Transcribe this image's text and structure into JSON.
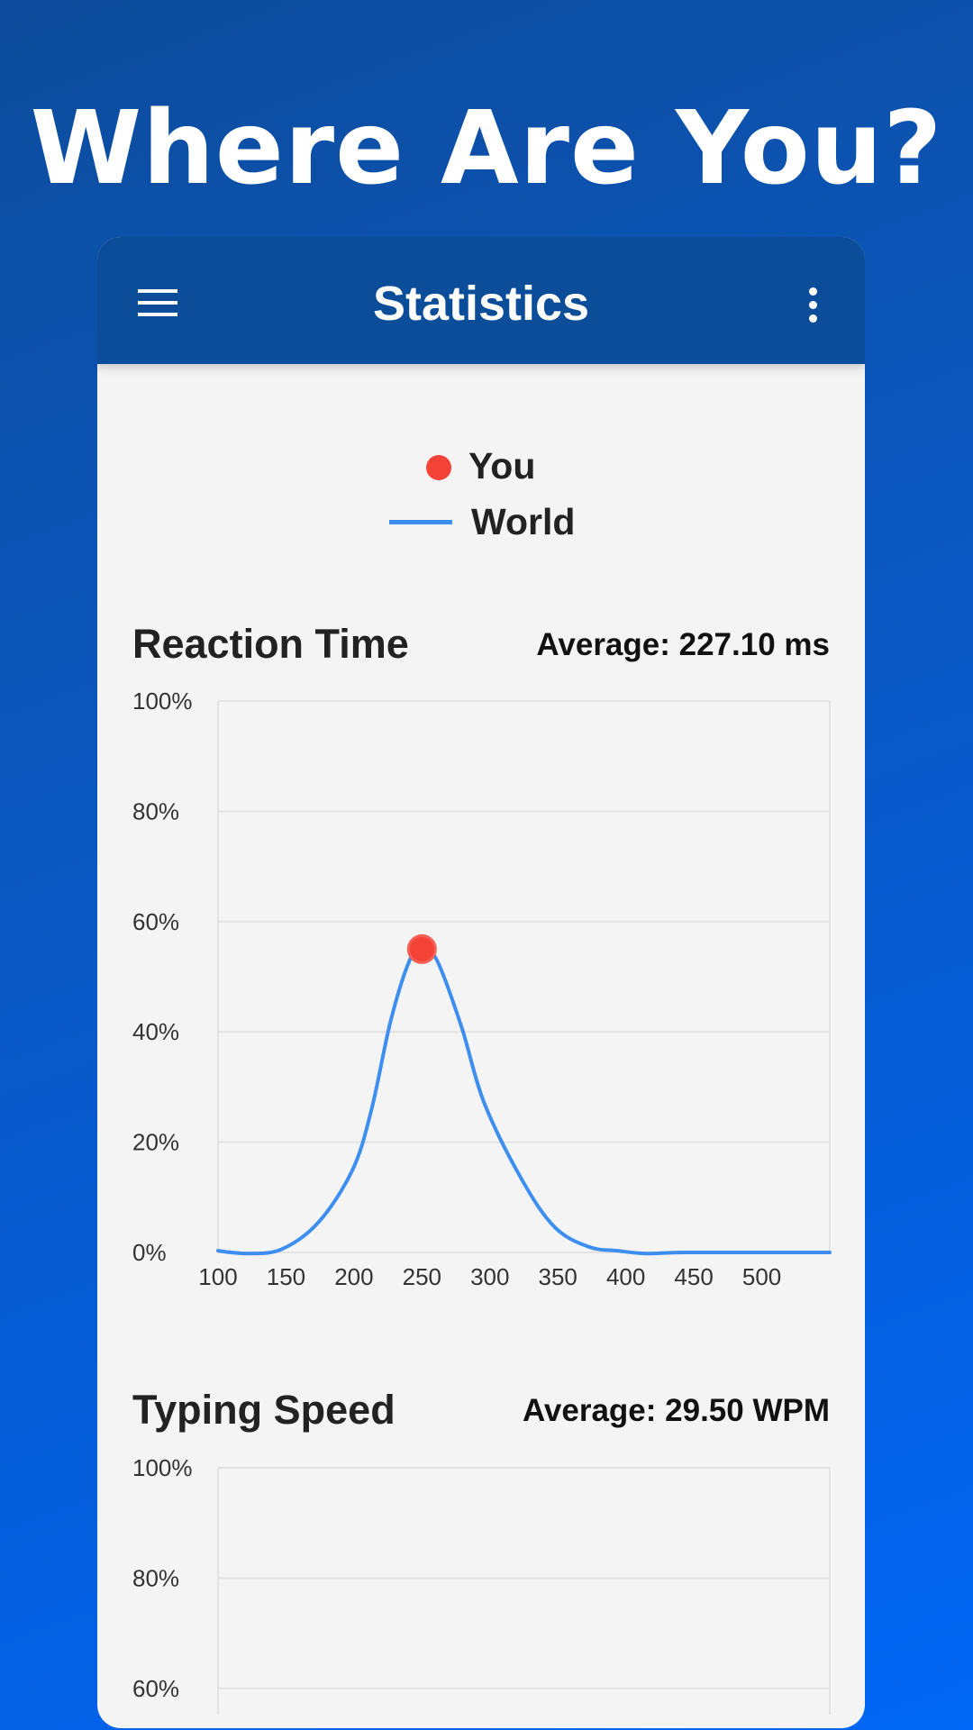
{
  "hero": {
    "title": "Where Are You?"
  },
  "appbar": {
    "title": "Statistics",
    "menu_icon": "hamburger-menu-icon",
    "more_icon": "more-vert-icon"
  },
  "legend": {
    "you": {
      "label": "You",
      "color": "#f44336"
    },
    "world": {
      "label": "World",
      "color": "#3d8ef0"
    }
  },
  "sections": [
    {
      "title": "Reaction Time",
      "average": "Average: 227.10 ms"
    },
    {
      "title": "Typing Speed",
      "average": "Average: 29.50 WPM"
    }
  ],
  "chart_data": [
    {
      "type": "line",
      "title": "Reaction Time",
      "xlim": [
        100,
        550
      ],
      "ylim": [
        0,
        100
      ],
      "x_ticks": [
        "100",
        "150",
        "200",
        "250",
        "300",
        "350",
        "400",
        "450",
        "500"
      ],
      "y_ticks": [
        "0%",
        "20%",
        "40%",
        "60%",
        "80%",
        "100%"
      ],
      "grid": true,
      "series": [
        {
          "name": "World",
          "color": "#3d8ef0",
          "x": [
            100,
            122,
            147,
            174,
            199,
            213,
            227,
            241,
            250,
            261,
            279,
            296,
            324,
            348,
            373,
            394,
            415,
            442,
            500,
            550
          ],
          "y": [
            0.3,
            -0.2,
            0.6,
            5.5,
            15,
            26,
            42,
            53,
            55,
            53,
            41,
            27,
            13,
            4.5,
            1,
            0.3,
            -0.2,
            0,
            0,
            0
          ]
        },
        {
          "name": "You",
          "color": "#f44336",
          "type": "scatter",
          "x": [
            250
          ],
          "y": [
            55
          ]
        }
      ]
    },
    {
      "type": "line",
      "title": "Typing Speed",
      "ylim": [
        0,
        100
      ],
      "y_ticks_visible": [
        "60%",
        "80%",
        "100%"
      ],
      "grid": true,
      "series": []
    }
  ]
}
